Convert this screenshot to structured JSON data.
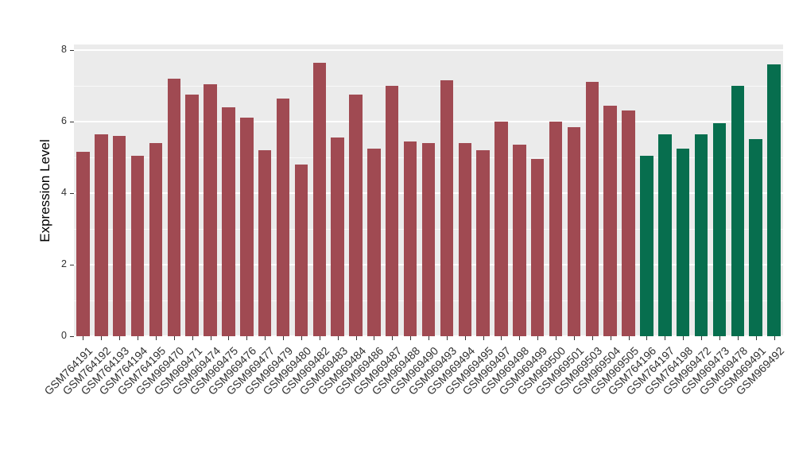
{
  "chart_data": {
    "type": "bar",
    "title": "",
    "xlabel": "",
    "ylabel": "Expression Level",
    "ylim": [
      0,
      8.15
    ],
    "yticks": [
      0,
      2,
      4,
      6,
      8
    ],
    "minor_ticks": [
      1,
      3,
      5,
      7
    ],
    "grid": true,
    "legend": "none",
    "plot_bg": "#EBEBEB",
    "grid_color": "#FFFFFF",
    "categories": [
      "GSM764191",
      "GSM764192",
      "GSM764193",
      "GSM764194",
      "GSM764195",
      "GSM969470",
      "GSM969471",
      "GSM969474",
      "GSM969475",
      "GSM969476",
      "GSM969477",
      "GSM969479",
      "GSM969480",
      "GSM969482",
      "GSM969483",
      "GSM969484",
      "GSM969486",
      "GSM969487",
      "GSM969488",
      "GSM969490",
      "GSM969493",
      "GSM969494",
      "GSM969495",
      "GSM969497",
      "GSM969498",
      "GSM969499",
      "GSM969500",
      "GSM969501",
      "GSM969503",
      "GSM969504",
      "GSM969505",
      "GSM764196",
      "GSM764197",
      "GSM764198",
      "GSM969472",
      "GSM969473",
      "GSM969478",
      "GSM969491",
      "GSM969492"
    ],
    "values": [
      5.15,
      5.65,
      5.6,
      5.05,
      5.4,
      7.2,
      6.75,
      7.05,
      6.4,
      6.1,
      5.2,
      6.65,
      4.8,
      7.65,
      5.55,
      6.75,
      5.25,
      7.0,
      5.45,
      5.4,
      7.15,
      5.4,
      5.2,
      6.0,
      5.35,
      4.95,
      6.0,
      5.85,
      7.1,
      6.45,
      6.3,
      5.05,
      5.65,
      5.25,
      5.65,
      5.95,
      7.0,
      5.5,
      7.6
    ],
    "groups": [
      "red",
      "red",
      "red",
      "red",
      "red",
      "red",
      "red",
      "red",
      "red",
      "red",
      "red",
      "red",
      "red",
      "red",
      "red",
      "red",
      "red",
      "red",
      "red",
      "red",
      "red",
      "red",
      "red",
      "red",
      "red",
      "red",
      "red",
      "red",
      "red",
      "red",
      "red",
      "green",
      "green",
      "green",
      "green",
      "green",
      "green",
      "green",
      "green"
    ],
    "colors": {
      "red": "#A04A52",
      "green": "#076E4E"
    }
  }
}
